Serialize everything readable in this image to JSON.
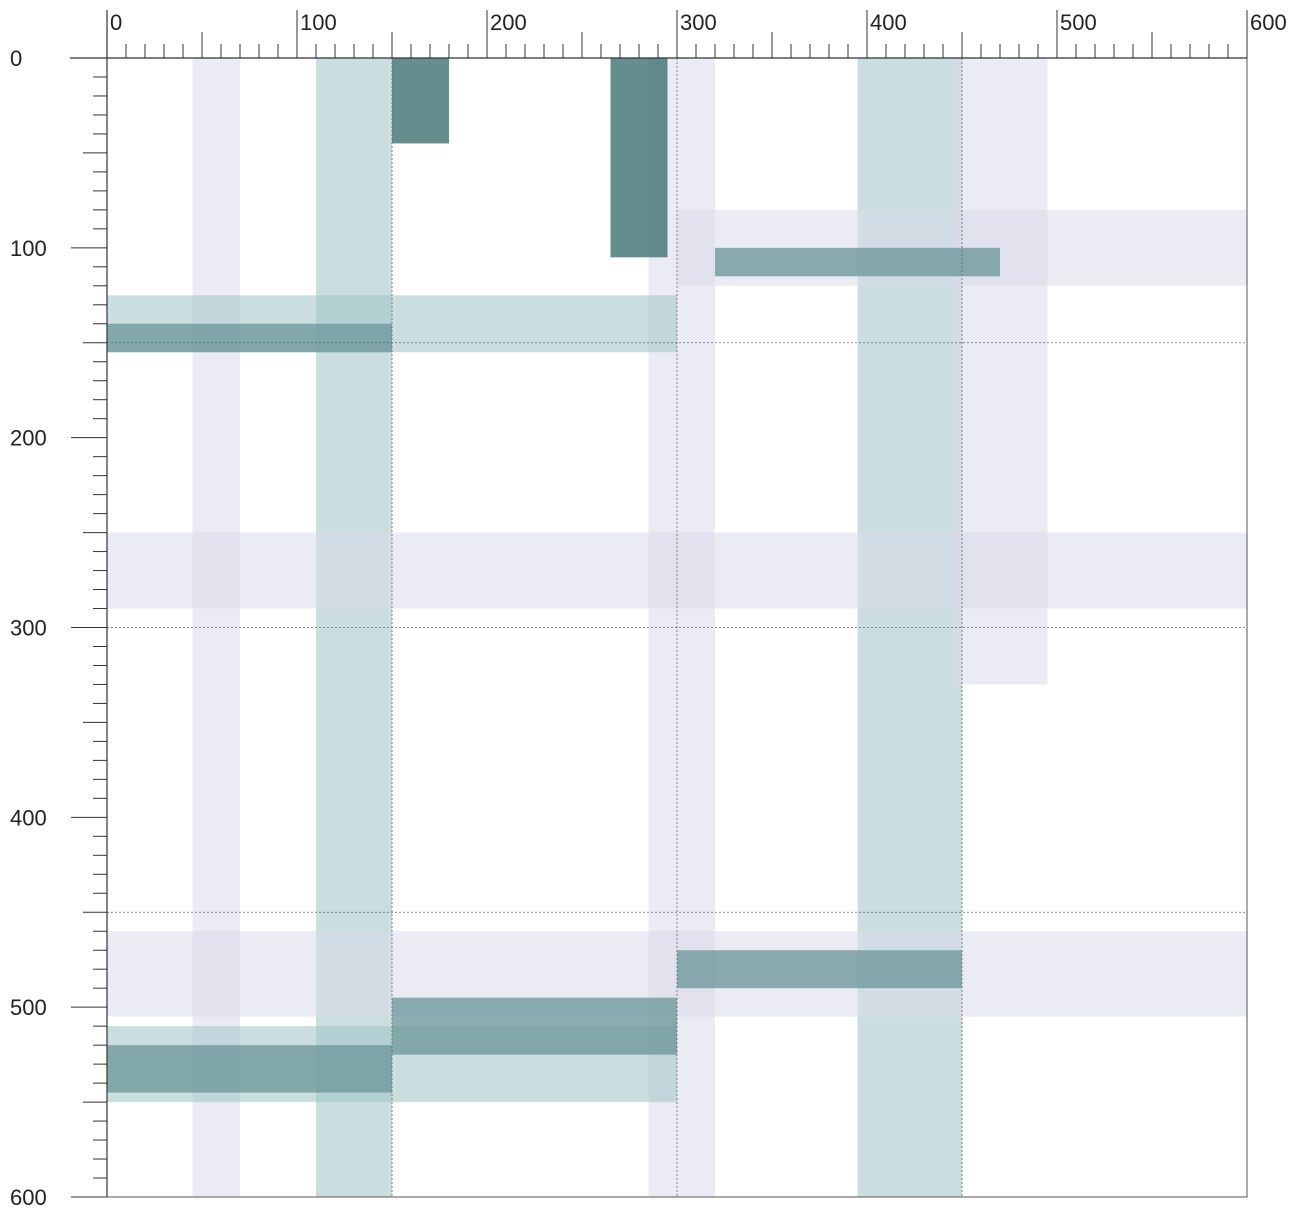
{
  "chart_data": {
    "type": "heatmap",
    "title": "",
    "xlabel": "",
    "ylabel": "",
    "xlim": [
      0,
      600
    ],
    "ylim": [
      0,
      600
    ],
    "x_ticks": [
      "0",
      "100",
      "200",
      "300",
      "400",
      "500",
      "600"
    ],
    "y_ticks": [
      "0",
      "100",
      "200",
      "300",
      "400",
      "500",
      "600"
    ],
    "x_tick_values": [
      0,
      100,
      200,
      300,
      400,
      500,
      600
    ],
    "y_tick_values": [
      0,
      100,
      200,
      300,
      400,
      500,
      600
    ],
    "x_guides": [
      150,
      300,
      450
    ],
    "y_guides": [
      150,
      300,
      450
    ],
    "colors": {
      "light": "#d9dbea",
      "medium": "#b9c7d6",
      "teal": "#9fc2c4",
      "dark": "#3f7070",
      "axis": "#333333"
    },
    "cells": [
      {
        "x": 45,
        "y": 0,
        "w": 25,
        "h": 600,
        "level": 0.45
      },
      {
        "x": 110,
        "y": 0,
        "w": 40,
        "h": 600,
        "level": 0.5
      },
      {
        "x": 285,
        "y": 0,
        "w": 35,
        "h": 600,
        "level": 0.45
      },
      {
        "x": 395,
        "y": 0,
        "w": 55,
        "h": 600,
        "level": 0.5
      },
      {
        "x": 445,
        "y": 0,
        "w": 50,
        "h": 330,
        "level": 0.45
      },
      {
        "x": 0,
        "y": 125,
        "w": 300,
        "h": 30,
        "level": 0.5
      },
      {
        "x": 0,
        "y": 250,
        "w": 600,
        "h": 40,
        "level": 0.45
      },
      {
        "x": 0,
        "y": 460,
        "w": 600,
        "h": 45,
        "level": 0.45
      },
      {
        "x": 0,
        "y": 510,
        "w": 300,
        "h": 40,
        "level": 0.55
      },
      {
        "x": 300,
        "y": 80,
        "w": 300,
        "h": 40,
        "level": 0.45
      },
      {
        "x": 150,
        "y": 0,
        "w": 30,
        "h": 45,
        "level": 0.85
      },
      {
        "x": 265,
        "y": 0,
        "w": 30,
        "h": 105,
        "level": 0.9
      },
      {
        "x": 320,
        "y": 100,
        "w": 150,
        "h": 15,
        "level": 0.7
      },
      {
        "x": 300,
        "y": 470,
        "w": 150,
        "h": 20,
        "level": 0.7
      },
      {
        "x": 150,
        "y": 495,
        "w": 150,
        "h": 30,
        "level": 0.65
      },
      {
        "x": 0,
        "y": 520,
        "w": 150,
        "h": 25,
        "level": 0.6
      },
      {
        "x": 0,
        "y": 140,
        "w": 150,
        "h": 15,
        "level": 0.6
      }
    ]
  }
}
